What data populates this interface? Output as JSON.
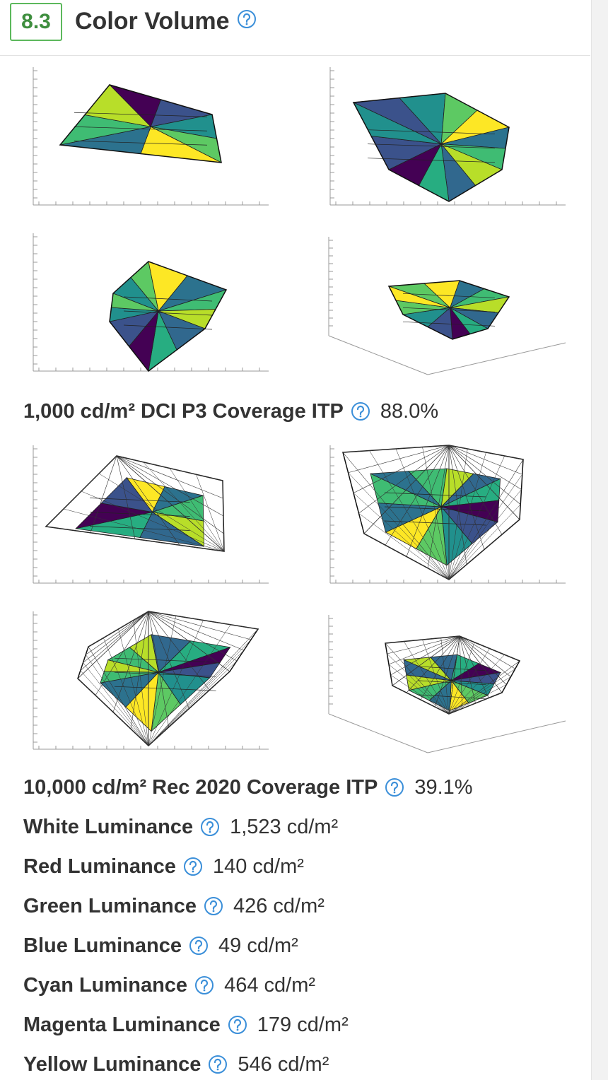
{
  "header": {
    "score": "8.3",
    "title": "Color Volume"
  },
  "coverage": [
    {
      "label": "1,000 cd/m² DCI P3 Coverage ITP",
      "value": "88.0%"
    },
    {
      "label": "10,000 cd/m² Rec 2020 Coverage ITP",
      "value": "39.1%"
    }
  ],
  "measurements": [
    {
      "label": "White Luminance",
      "value": "1,523 cd/m²"
    },
    {
      "label": "Red Luminance",
      "value": "140 cd/m²"
    },
    {
      "label": "Green Luminance",
      "value": "426 cd/m²"
    },
    {
      "label": "Blue Luminance",
      "value": "49 cd/m²"
    },
    {
      "label": "Cyan Luminance",
      "value": "464 cd/m²"
    },
    {
      "label": "Magenta Luminance",
      "value": "179 cd/m²"
    },
    {
      "label": "Yellow Luminance",
      "value": "546 cd/m²"
    }
  ]
}
